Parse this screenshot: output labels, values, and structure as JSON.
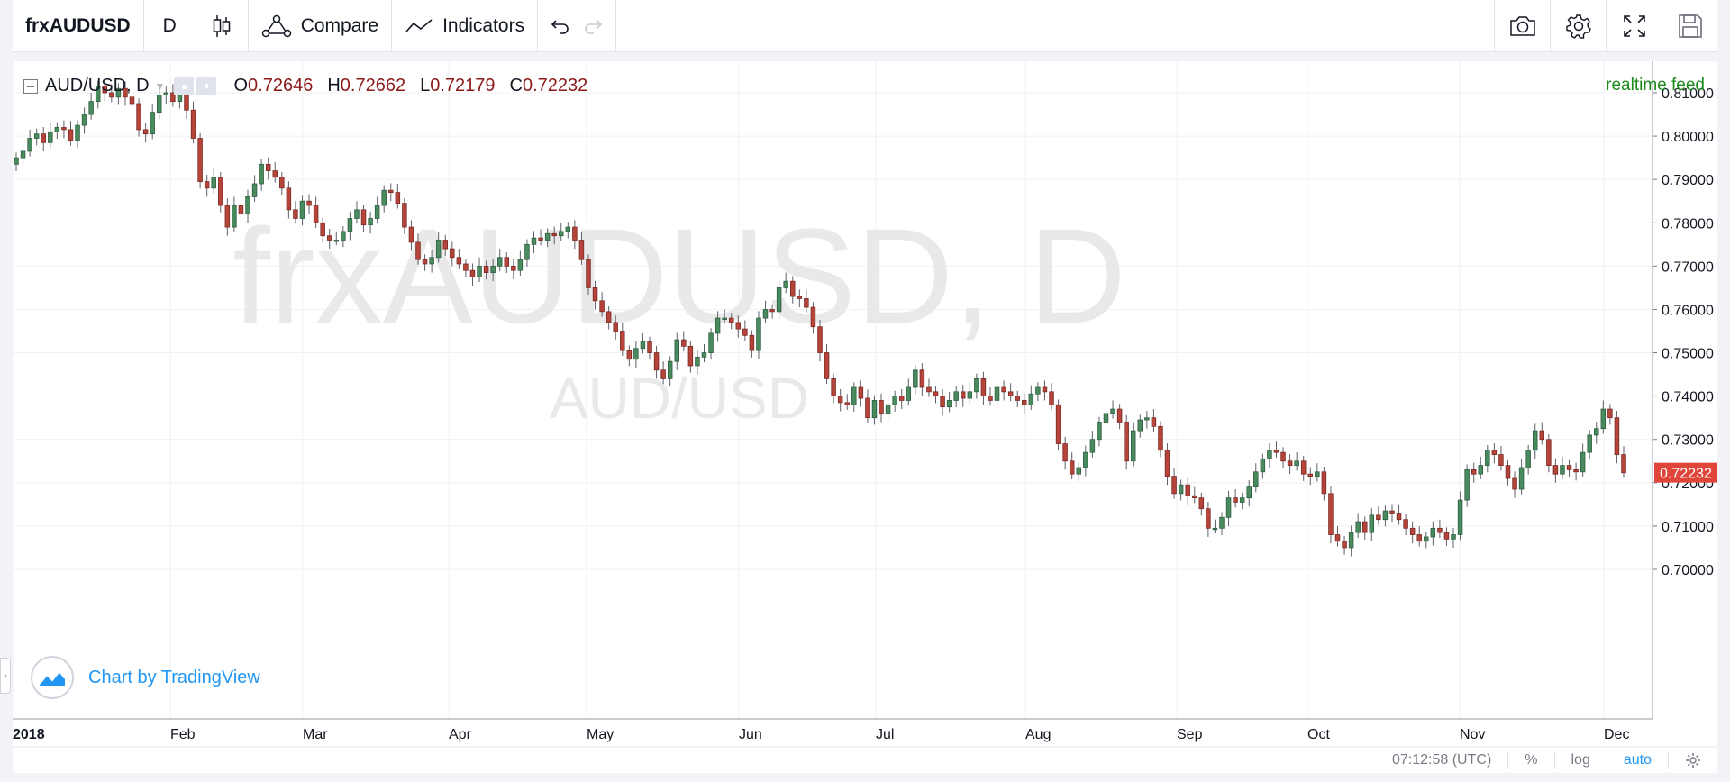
{
  "toolbar": {
    "symbol": "frxAUDUSD",
    "interval": "D",
    "compare_label": "Compare",
    "indicators_label": "Indicators",
    "icons": [
      "candles-icon",
      "compare-icon",
      "indicators-icon",
      "undo-icon",
      "redo-icon",
      "camera-icon",
      "settings-icon",
      "fullscreen-icon",
      "save-icon"
    ]
  },
  "legend": {
    "series_title": "AUD/USD, D",
    "open_key": "O",
    "open": "0.72646",
    "high_key": "H",
    "high": "0.72662",
    "low_key": "L",
    "low": "0.72179",
    "close_key": "C",
    "close": "0.72232"
  },
  "realtime_label": "realtime feed",
  "watermark": {
    "main": "frxAUDUSD, D",
    "sub": "AUD/USD"
  },
  "branding": {
    "text": "Chart by TradingView"
  },
  "statusbar": {
    "time": "07:12:58 (UTC)",
    "percent": "%",
    "log": "log",
    "auto": "auto"
  },
  "colors": {
    "up": "#53b987",
    "down": "#eb4d5c",
    "up_fill": "#4a8a5f",
    "down_fill": "#b5443b",
    "price_label": "#e0453a",
    "realtime": "#1b8a1b",
    "link": "#2196f3"
  },
  "chart_data": {
    "type": "candlestick",
    "title": "AUD/USD, D",
    "ylim": [
      0.695,
      0.815
    ],
    "y_ticks": [
      "0.81000",
      "0.80000",
      "0.79000",
      "0.78000",
      "0.77000",
      "0.76000",
      "0.75000",
      "0.74000",
      "0.73000",
      "0.72000",
      "0.71000",
      "0.70000"
    ],
    "x_ticks": [
      "2018",
      "Feb",
      "Mar",
      "Apr",
      "May",
      "Jun",
      "Jul",
      "Aug",
      "Sep",
      "Oct",
      "Nov",
      "Dec"
    ],
    "last_price": "0.72232",
    "grid": true,
    "closes": [
      0.795,
      0.7965,
      0.7995,
      0.8005,
      0.7985,
      0.801,
      0.802,
      0.8015,
      0.799,
      0.8025,
      0.805,
      0.808,
      0.8115,
      0.81,
      0.809,
      0.811,
      0.809,
      0.8075,
      0.8015,
      0.8005,
      0.8055,
      0.8095,
      0.81,
      0.808,
      0.8095,
      0.806,
      0.7995,
      0.7895,
      0.788,
      0.7905,
      0.784,
      0.779,
      0.784,
      0.782,
      0.786,
      0.789,
      0.7935,
      0.792,
      0.7905,
      0.788,
      0.783,
      0.781,
      0.785,
      0.784,
      0.78,
      0.777,
      0.776,
      0.776,
      0.778,
      0.781,
      0.783,
      0.7795,
      0.781,
      0.784,
      0.7875,
      0.787,
      0.7845,
      0.779,
      0.7755,
      0.7715,
      0.7705,
      0.772,
      0.776,
      0.774,
      0.772,
      0.7705,
      0.769,
      0.7675,
      0.77,
      0.7685,
      0.77,
      0.772,
      0.77,
      0.769,
      0.7715,
      0.775,
      0.7765,
      0.776,
      0.7775,
      0.777,
      0.778,
      0.779,
      0.776,
      0.7715,
      0.765,
      0.762,
      0.7595,
      0.757,
      0.755,
      0.7505,
      0.7485,
      0.751,
      0.7525,
      0.75,
      0.746,
      0.744,
      0.748,
      0.753,
      0.7515,
      0.747,
      0.749,
      0.75,
      0.7545,
      0.758,
      0.758,
      0.757,
      0.7555,
      0.754,
      0.7505,
      0.758,
      0.76,
      0.7595,
      0.765,
      0.7665,
      0.763,
      0.7625,
      0.7605,
      0.756,
      0.75,
      0.744,
      0.74,
      0.7385,
      0.738,
      0.742,
      0.7395,
      0.735,
      0.739,
      0.736,
      0.738,
      0.74,
      0.739,
      0.742,
      0.746,
      0.742,
      0.741,
      0.74,
      0.7375,
      0.739,
      0.741,
      0.7395,
      0.741,
      0.744,
      0.74,
      0.739,
      0.742,
      0.741,
      0.74,
      0.739,
      0.738,
      0.7405,
      0.742,
      0.741,
      0.738,
      0.729,
      0.725,
      0.722,
      0.7235,
      0.727,
      0.73,
      0.734,
      0.736,
      0.737,
      0.734,
      0.725,
      0.732,
      0.7345,
      0.735,
      0.733,
      0.7275,
      0.7215,
      0.7175,
      0.7195,
      0.717,
      0.7165,
      0.714,
      0.7095,
      0.7095,
      0.712,
      0.7165,
      0.7155,
      0.7165,
      0.719,
      0.7225,
      0.7255,
      0.7275,
      0.727,
      0.725,
      0.724,
      0.725,
      0.722,
      0.7215,
      0.7225,
      0.7175,
      0.708,
      0.7065,
      0.705,
      0.7085,
      0.711,
      0.7085,
      0.7125,
      0.7115,
      0.7135,
      0.713,
      0.7115,
      0.7095,
      0.708,
      0.7065,
      0.7075,
      0.7095,
      0.7085,
      0.707,
      0.708,
      0.716,
      0.723,
      0.722,
      0.724,
      0.7275,
      0.7265,
      0.724,
      0.721,
      0.7185,
      0.7235,
      0.7275,
      0.732,
      0.73,
      0.724,
      0.722,
      0.724,
      0.723,
      0.7225,
      0.727,
      0.731,
      0.7325,
      0.737,
      0.735,
      0.7265,
      0.7223
    ]
  }
}
